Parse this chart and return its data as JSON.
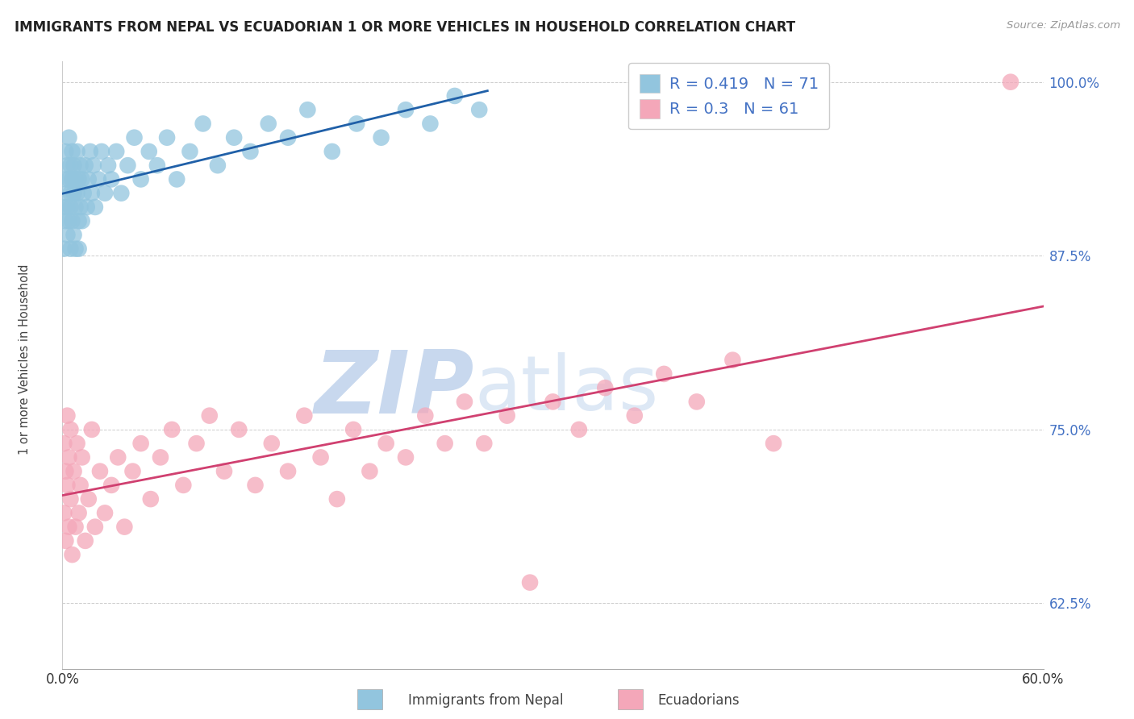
{
  "title": "IMMIGRANTS FROM NEPAL VS ECUADORIAN 1 OR MORE VEHICLES IN HOUSEHOLD CORRELATION CHART",
  "source": "Source: ZipAtlas.com",
  "ylabel": "1 or more Vehicles in Household",
  "label_nepal": "Immigrants from Nepal",
  "label_ecuador": "Ecuadorians",
  "xmin": 0.0,
  "xmax": 0.6,
  "ymin": 0.578,
  "ymax": 1.015,
  "yticks": [
    0.625,
    0.75,
    0.875,
    1.0
  ],
  "ytick_labels": [
    "62.5%",
    "75.0%",
    "87.5%",
    "100.0%"
  ],
  "nepal_R": 0.419,
  "nepal_N": 71,
  "ecuador_R": 0.3,
  "ecuador_N": 61,
  "blue_color": "#92c5de",
  "pink_color": "#f4a7b9",
  "blue_line_color": "#2060a8",
  "pink_line_color": "#d04070",
  "watermark_zip": "ZIP",
  "watermark_atlas": "atlas",
  "watermark_color": "#c8d8ee",
  "nepal_x": [
    0.001,
    0.001,
    0.002,
    0.002,
    0.002,
    0.003,
    0.003,
    0.003,
    0.003,
    0.004,
    0.004,
    0.004,
    0.005,
    0.005,
    0.005,
    0.005,
    0.006,
    0.006,
    0.006,
    0.007,
    0.007,
    0.007,
    0.008,
    0.008,
    0.008,
    0.009,
    0.009,
    0.01,
    0.01,
    0.01,
    0.011,
    0.011,
    0.012,
    0.012,
    0.013,
    0.014,
    0.015,
    0.016,
    0.017,
    0.018,
    0.019,
    0.02,
    0.022,
    0.024,
    0.026,
    0.028,
    0.03,
    0.033,
    0.036,
    0.04,
    0.044,
    0.048,
    0.053,
    0.058,
    0.064,
    0.07,
    0.078,
    0.086,
    0.095,
    0.105,
    0.115,
    0.126,
    0.138,
    0.15,
    0.165,
    0.18,
    0.195,
    0.21,
    0.225,
    0.24,
    0.255
  ],
  "nepal_y": [
    0.88,
    0.91,
    0.93,
    0.9,
    0.95,
    0.92,
    0.89,
    0.94,
    0.91,
    0.93,
    0.9,
    0.96,
    0.92,
    0.88,
    0.94,
    0.91,
    0.93,
    0.9,
    0.95,
    0.92,
    0.89,
    0.94,
    0.91,
    0.93,
    0.88,
    0.95,
    0.92,
    0.9,
    0.93,
    0.88,
    0.94,
    0.91,
    0.93,
    0.9,
    0.92,
    0.94,
    0.91,
    0.93,
    0.95,
    0.92,
    0.94,
    0.91,
    0.93,
    0.95,
    0.92,
    0.94,
    0.93,
    0.95,
    0.92,
    0.94,
    0.96,
    0.93,
    0.95,
    0.94,
    0.96,
    0.93,
    0.95,
    0.97,
    0.94,
    0.96,
    0.95,
    0.97,
    0.96,
    0.98,
    0.95,
    0.97,
    0.96,
    0.98,
    0.97,
    0.99,
    0.98
  ],
  "ecuador_x": [
    0.001,
    0.001,
    0.002,
    0.002,
    0.003,
    0.003,
    0.004,
    0.004,
    0.005,
    0.005,
    0.006,
    0.007,
    0.008,
    0.009,
    0.01,
    0.011,
    0.012,
    0.014,
    0.016,
    0.018,
    0.02,
    0.023,
    0.026,
    0.03,
    0.034,
    0.038,
    0.043,
    0.048,
    0.054,
    0.06,
    0.067,
    0.074,
    0.082,
    0.09,
    0.099,
    0.108,
    0.118,
    0.128,
    0.138,
    0.148,
    0.158,
    0.168,
    0.178,
    0.188,
    0.198,
    0.21,
    0.222,
    0.234,
    0.246,
    0.258,
    0.272,
    0.286,
    0.3,
    0.316,
    0.332,
    0.35,
    0.368,
    0.388,
    0.41,
    0.435,
    0.58
  ],
  "ecuador_y": [
    0.69,
    0.74,
    0.67,
    0.72,
    0.71,
    0.76,
    0.68,
    0.73,
    0.7,
    0.75,
    0.66,
    0.72,
    0.68,
    0.74,
    0.69,
    0.71,
    0.73,
    0.67,
    0.7,
    0.75,
    0.68,
    0.72,
    0.69,
    0.71,
    0.73,
    0.68,
    0.72,
    0.74,
    0.7,
    0.73,
    0.75,
    0.71,
    0.74,
    0.76,
    0.72,
    0.75,
    0.71,
    0.74,
    0.72,
    0.76,
    0.73,
    0.7,
    0.75,
    0.72,
    0.74,
    0.73,
    0.76,
    0.74,
    0.77,
    0.74,
    0.76,
    0.64,
    0.77,
    0.75,
    0.78,
    0.76,
    0.79,
    0.77,
    0.8,
    0.74,
    1.0
  ]
}
